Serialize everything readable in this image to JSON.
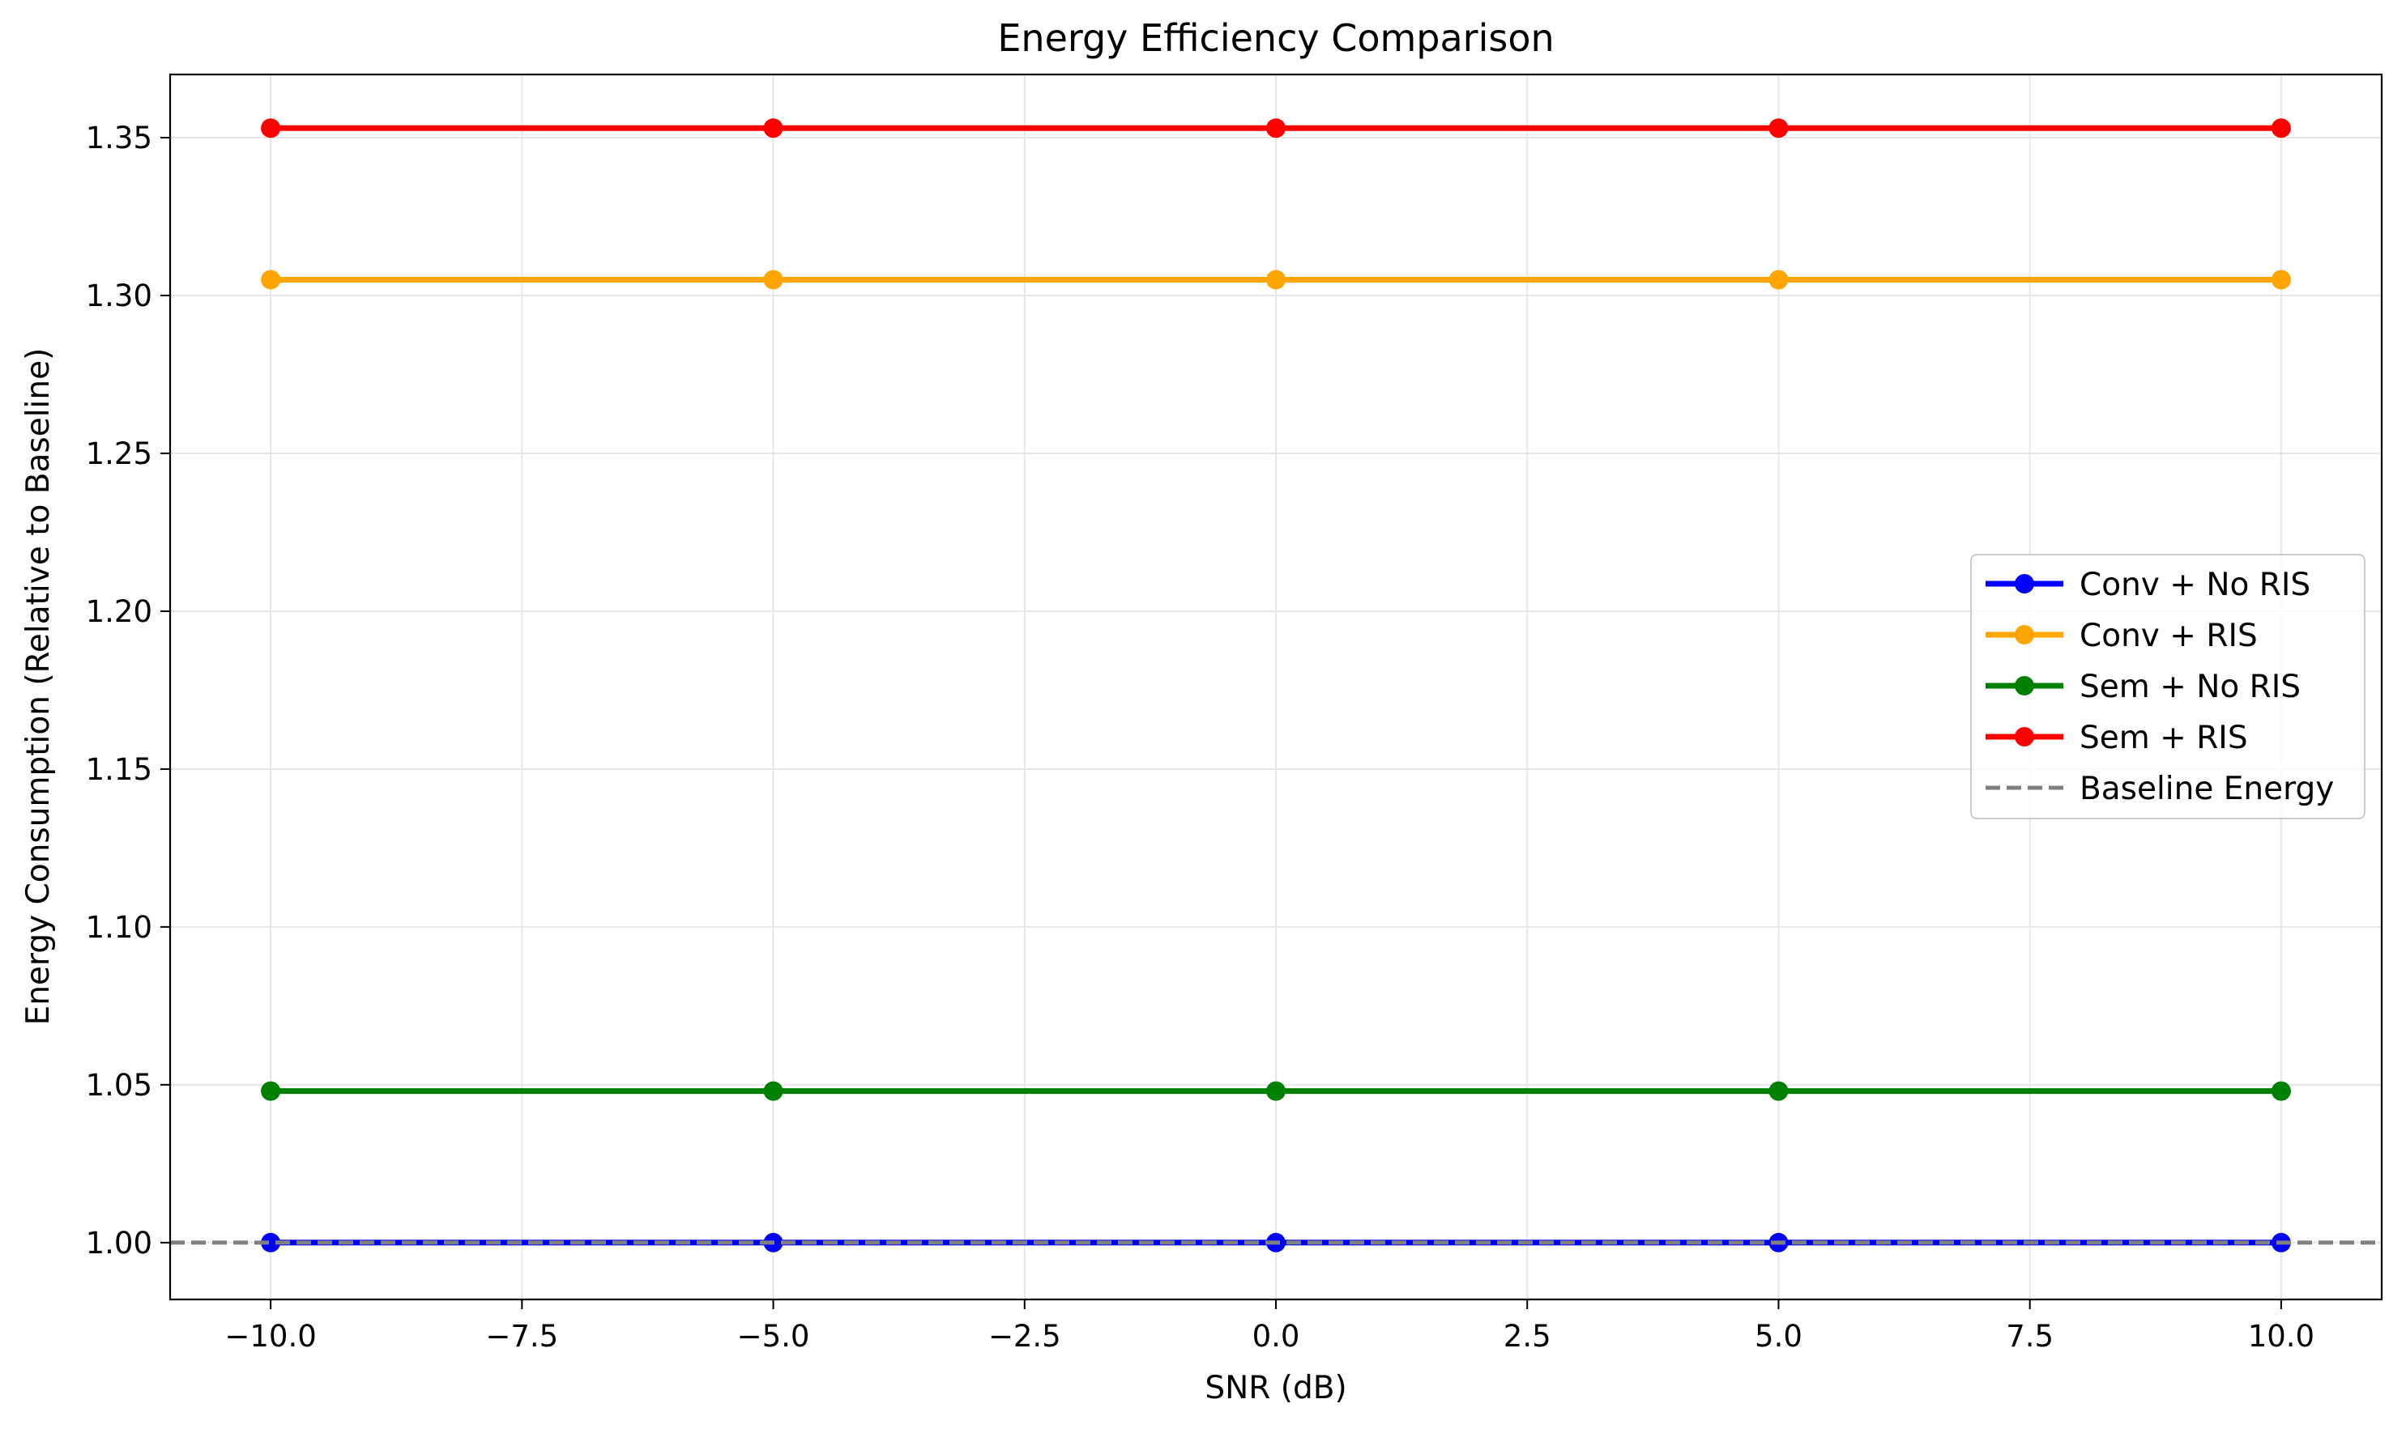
{
  "chart_data": {
    "type": "line",
    "title": "Energy Efficiency Comparison",
    "xlabel": "SNR (dB)",
    "ylabel": "Energy Consumption (Relative to Baseline)",
    "xlim": [
      -11,
      11
    ],
    "ylim": [
      0.982,
      1.37
    ],
    "grid": true,
    "legend_position": "center-right",
    "x": [
      -10,
      -5,
      0,
      5,
      10
    ],
    "x_ticks": [
      {
        "value": -10,
        "label": "−10.0"
      },
      {
        "value": -7.5,
        "label": "−7.5"
      },
      {
        "value": -5,
        "label": "−5.0"
      },
      {
        "value": -2.5,
        "label": "−2.5"
      },
      {
        "value": 0,
        "label": "0.0"
      },
      {
        "value": 2.5,
        "label": "2.5"
      },
      {
        "value": 5,
        "label": "5.0"
      },
      {
        "value": 7.5,
        "label": "7.5"
      },
      {
        "value": 10,
        "label": "10.0"
      }
    ],
    "y_ticks": [
      {
        "value": 1.0,
        "label": "1.00"
      },
      {
        "value": 1.05,
        "label": "1.05"
      },
      {
        "value": 1.1,
        "label": "1.10"
      },
      {
        "value": 1.15,
        "label": "1.15"
      },
      {
        "value": 1.2,
        "label": "1.20"
      },
      {
        "value": 1.25,
        "label": "1.25"
      },
      {
        "value": 1.3,
        "label": "1.30"
      },
      {
        "value": 1.35,
        "label": "1.35"
      }
    ],
    "series": [
      {
        "name": "Conv + No RIS",
        "color": "#0000ff",
        "values": [
          1.0,
          1.0,
          1.0,
          1.0,
          1.0
        ]
      },
      {
        "name": "Conv + RIS",
        "color": "#ffa500",
        "values": [
          1.305,
          1.305,
          1.305,
          1.305,
          1.305
        ]
      },
      {
        "name": "Sem + No RIS",
        "color": "#008000",
        "values": [
          1.048,
          1.048,
          1.048,
          1.048,
          1.048
        ]
      },
      {
        "name": "Sem + RIS",
        "color": "#ff0000",
        "values": [
          1.353,
          1.353,
          1.353,
          1.353,
          1.353
        ]
      }
    ],
    "reference_line": {
      "name": "Baseline Energy",
      "value": 1.0,
      "color": "#808080",
      "style": "dashed"
    }
  }
}
